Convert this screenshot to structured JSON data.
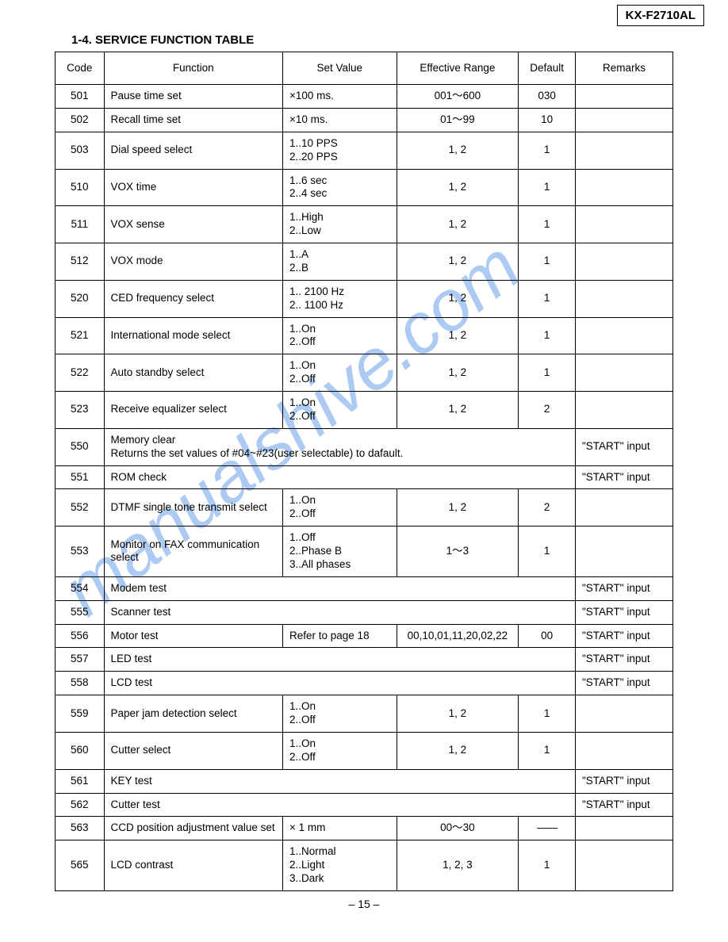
{
  "model": "KX-F2710AL",
  "section_title": "1-4. SERVICE FUNCTION TABLE",
  "page_number": "– 15 –",
  "watermark_text": "manualshive.com",
  "watermark_color": "#6aa0e8",
  "columns": [
    "Code",
    "Function",
    "Set Value",
    "Effective Range",
    "Default",
    "Remarks"
  ],
  "rows": [
    {
      "code": "501",
      "func": "Pause time set",
      "set": "×100 ms.",
      "range": "001～600",
      "def": "030",
      "rem": "",
      "span": false
    },
    {
      "code": "502",
      "func": "Recall time set",
      "set": "×10 ms.",
      "range": "01～99",
      "def": "10",
      "rem": "",
      "span": false
    },
    {
      "code": "503",
      "func": "Dial speed select",
      "set": "1..10 PPS\n2..20 PPS",
      "range": "1, 2",
      "def": "1",
      "rem": "",
      "span": false
    },
    {
      "code": "510",
      "func": "VOX time",
      "set": "1..6 sec\n2..4 sec",
      "range": "1, 2",
      "def": "1",
      "rem": "",
      "span": false
    },
    {
      "code": "511",
      "func": "VOX sense",
      "set": "1..High\n2..Low",
      "range": "1, 2",
      "def": "1",
      "rem": "",
      "span": false
    },
    {
      "code": "512",
      "func": "VOX mode",
      "set": "1..A\n2..B",
      "range": "1, 2",
      "def": "1",
      "rem": "",
      "span": false
    },
    {
      "code": "520",
      "func": "CED frequency select",
      "set": "1.. 2100 Hz\n2.. 1100 Hz",
      "range": "1, 2",
      "def": "1",
      "rem": "",
      "span": false
    },
    {
      "code": "521",
      "func": "International mode select",
      "set": "1..On\n2..Off",
      "range": "1, 2",
      "def": "1",
      "rem": "",
      "span": false
    },
    {
      "code": "522",
      "func": "Auto standby select",
      "set": "1..On\n2..Off",
      "range": "1, 2",
      "def": "1",
      "rem": "",
      "span": false
    },
    {
      "code": "523",
      "func": "Receive equalizer select",
      "set": "1..On\n2..Off",
      "range": "1, 2",
      "def": "2",
      "rem": "",
      "span": false
    },
    {
      "code": "550",
      "func": "Memory clear\nReturns the set values of #04~#23(user selectable) to dafault.",
      "rem": "\"START\" input",
      "span": true
    },
    {
      "code": "551",
      "func": "ROM check",
      "rem": "\"START\" input",
      "span": true
    },
    {
      "code": "552",
      "func": "DTMF single tone transmit select",
      "set": "1..On\n2..Off",
      "range": "1, 2",
      "def": "2",
      "rem": "",
      "span": false
    },
    {
      "code": "553",
      "func": "Monitor on FAX communication select",
      "set": "1..Off\n2..Phase B\n3..All phases",
      "range": "1～3",
      "def": "1",
      "rem": "",
      "span": false
    },
    {
      "code": "554",
      "func": "Modem test",
      "rem": "\"START\" input",
      "span": true
    },
    {
      "code": "555",
      "func": "Scanner test",
      "rem": "\"START\" input",
      "span": true
    },
    {
      "code": "556",
      "func": "Motor test",
      "set": "Refer to page 18",
      "range": "00,10,01,11,20,02,22",
      "def": "00",
      "rem": "\"START\" input",
      "span": false
    },
    {
      "code": "557",
      "func": "LED test",
      "rem": "\"START\" input",
      "span": true
    },
    {
      "code": "558",
      "func": "LCD test",
      "rem": "\"START\" input",
      "span": true
    },
    {
      "code": "559",
      "func": "Paper jam detection select",
      "set": "1..On\n2..Off",
      "range": "1, 2",
      "def": "1",
      "rem": "",
      "span": false
    },
    {
      "code": "560",
      "func": "Cutter select",
      "set": "1..On\n2..Off",
      "range": "1, 2",
      "def": "1",
      "rem": "",
      "span": false
    },
    {
      "code": "561",
      "func": "KEY test",
      "rem": "\"START\" input",
      "span": true
    },
    {
      "code": "562",
      "func": "Cutter test",
      "rem": "\"START\" input",
      "span": true
    },
    {
      "code": "563",
      "func": "CCD position adjustment value set",
      "set": "× 1 mm",
      "range": "00～30",
      "def": "——",
      "rem": "",
      "span": false
    },
    {
      "code": "565",
      "func": "LCD contrast",
      "set": "1..Normal\n2..Light\n3..Dark",
      "range": "1, 2, 3",
      "def": "1",
      "rem": "",
      "span": false
    }
  ]
}
